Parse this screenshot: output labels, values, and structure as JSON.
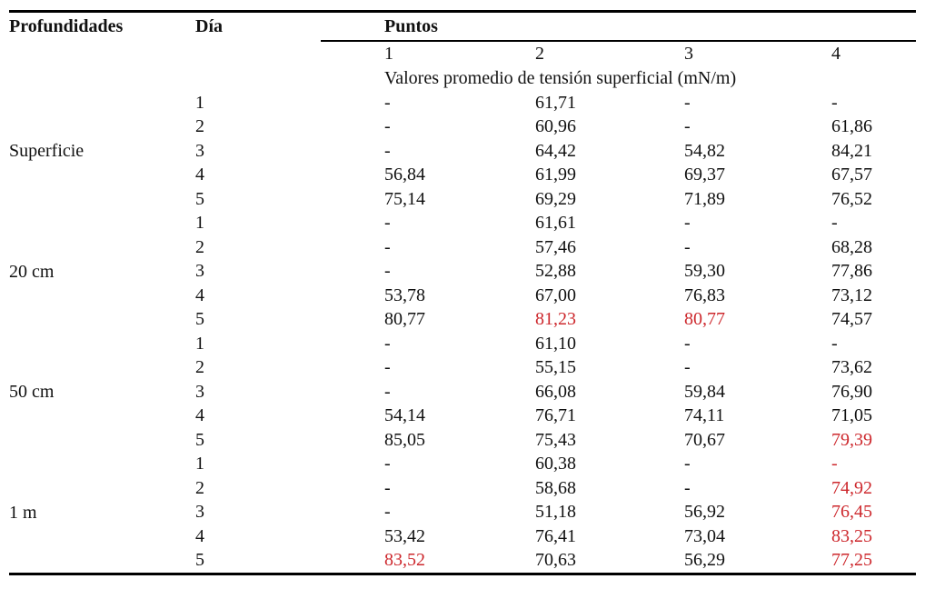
{
  "colors": {
    "text": "#111111",
    "highlight": "#cd282d"
  },
  "table": {
    "headers": {
      "profundidades": "Profundidades",
      "dia": "Día",
      "puntos": "Puntos"
    },
    "point_columns": [
      "1",
      "2",
      "3",
      "4"
    ],
    "subtitle": "Valores promedio de tensión superficial (mN/m)",
    "groups": [
      {
        "depth": "Superficie",
        "days": [
          {
            "day": "1",
            "p": [
              "-",
              "61,71",
              "-",
              "-"
            ],
            "red": [
              false,
              false,
              false,
              false
            ]
          },
          {
            "day": "2",
            "p": [
              "-",
              "60,96",
              "-",
              "61,86"
            ],
            "red": [
              false,
              false,
              false,
              false
            ]
          },
          {
            "day": "3",
            "p": [
              "-",
              "64,42",
              "54,82",
              "84,21"
            ],
            "red": [
              false,
              false,
              false,
              false
            ]
          },
          {
            "day": "4",
            "p": [
              "56,84",
              "61,99",
              "69,37",
              "67,57"
            ],
            "red": [
              false,
              false,
              false,
              false
            ]
          },
          {
            "day": "5",
            "p": [
              "75,14",
              "69,29",
              "71,89",
              "76,52"
            ],
            "red": [
              false,
              false,
              false,
              false
            ]
          }
        ]
      },
      {
        "depth": "20 cm",
        "days": [
          {
            "day": "1",
            "p": [
              "-",
              "61,61",
              "-",
              "-"
            ],
            "red": [
              false,
              false,
              false,
              false
            ]
          },
          {
            "day": "2",
            "p": [
              "-",
              "57,46",
              "-",
              "68,28"
            ],
            "red": [
              false,
              false,
              false,
              false
            ]
          },
          {
            "day": "3",
            "p": [
              "-",
              "52,88",
              "59,30",
              "77,86"
            ],
            "red": [
              false,
              false,
              false,
              false
            ]
          },
          {
            "day": "4",
            "p": [
              "53,78",
              "67,00",
              "76,83",
              "73,12"
            ],
            "red": [
              false,
              false,
              false,
              false
            ]
          },
          {
            "day": "5",
            "p": [
              "80,77",
              "81,23",
              "80,77",
              "74,57"
            ],
            "red": [
              false,
              true,
              true,
              false
            ]
          }
        ]
      },
      {
        "depth": "50 cm",
        "days": [
          {
            "day": "1",
            "p": [
              "-",
              "61,10",
              "-",
              "-"
            ],
            "red": [
              false,
              false,
              false,
              false
            ]
          },
          {
            "day": "2",
            "p": [
              "-",
              "55,15",
              "-",
              "73,62"
            ],
            "red": [
              false,
              false,
              false,
              false
            ]
          },
          {
            "day": "3",
            "p": [
              "-",
              "66,08",
              "59,84",
              "76,90"
            ],
            "red": [
              false,
              false,
              false,
              false
            ]
          },
          {
            "day": "4",
            "p": [
              "54,14",
              "76,71",
              "74,11",
              "71,05"
            ],
            "red": [
              false,
              false,
              false,
              false
            ]
          },
          {
            "day": "5",
            "p": [
              "85,05",
              "75,43",
              "70,67",
              "79,39"
            ],
            "red": [
              false,
              false,
              false,
              true
            ]
          }
        ]
      },
      {
        "depth": "1 m",
        "days": [
          {
            "day": "1",
            "p": [
              "-",
              "60,38",
              "-",
              "-"
            ],
            "red": [
              false,
              false,
              false,
              true
            ]
          },
          {
            "day": "2",
            "p": [
              "-",
              "58,68",
              "-",
              "74,92"
            ],
            "red": [
              false,
              false,
              false,
              true
            ]
          },
          {
            "day": "3",
            "p": [
              "-",
              "51,18",
              "56,92",
              "76,45"
            ],
            "red": [
              false,
              false,
              false,
              true
            ]
          },
          {
            "day": "4",
            "p": [
              "53,42",
              "76,41",
              "73,04",
              "83,25"
            ],
            "red": [
              false,
              false,
              false,
              true
            ]
          },
          {
            "day": "5",
            "p": [
              "83,52",
              "70,63",
              "56,29",
              "77,25"
            ],
            "red": [
              true,
              false,
              false,
              true
            ]
          }
        ]
      }
    ]
  }
}
